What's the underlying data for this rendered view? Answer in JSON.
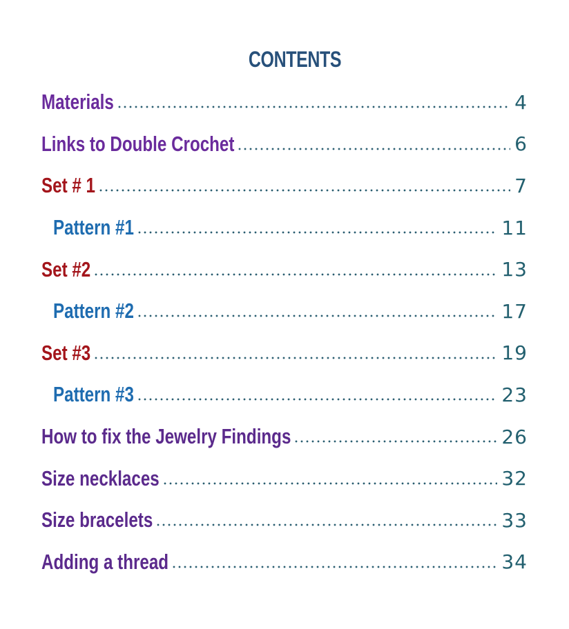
{
  "toc": {
    "title": "CONTENTS",
    "entries": [
      {
        "label": "Materials",
        "page": "4",
        "color": "#6a2b9c",
        "indent": false
      },
      {
        "label": "Links to Double Crochet",
        "page": "6",
        "color": "#6a2b9c",
        "indent": false
      },
      {
        "label": "Set # 1",
        "page": "7",
        "color": "#a3151b",
        "indent": false
      },
      {
        "label": "Pattern #1",
        "page": "11",
        "color": "#1e6cb0",
        "indent": true
      },
      {
        "label": "Set #2",
        "page": "13",
        "color": "#a3151b",
        "indent": false
      },
      {
        "label": "Pattern #2",
        "page": "17",
        "color": "#1e6cb0",
        "indent": true
      },
      {
        "label": "Set #3",
        "page": "19",
        "color": "#a3151b",
        "indent": false
      },
      {
        "label": "Pattern #3",
        "page": "23",
        "color": "#1e6cb0",
        "indent": true
      },
      {
        "label": "How to fix the Jewelry Findings",
        "page": "26",
        "color": "#5b2a8c",
        "indent": false
      },
      {
        "label": "Size necklaces",
        "page": "32",
        "color": "#5b2a8c",
        "indent": false
      },
      {
        "label": "Size bracelets",
        "page": "33",
        "color": "#5b2a8c",
        "indent": false
      },
      {
        "label": "Adding a thread",
        "page": "34",
        "color": "#5b2a8c",
        "indent": false
      }
    ]
  }
}
